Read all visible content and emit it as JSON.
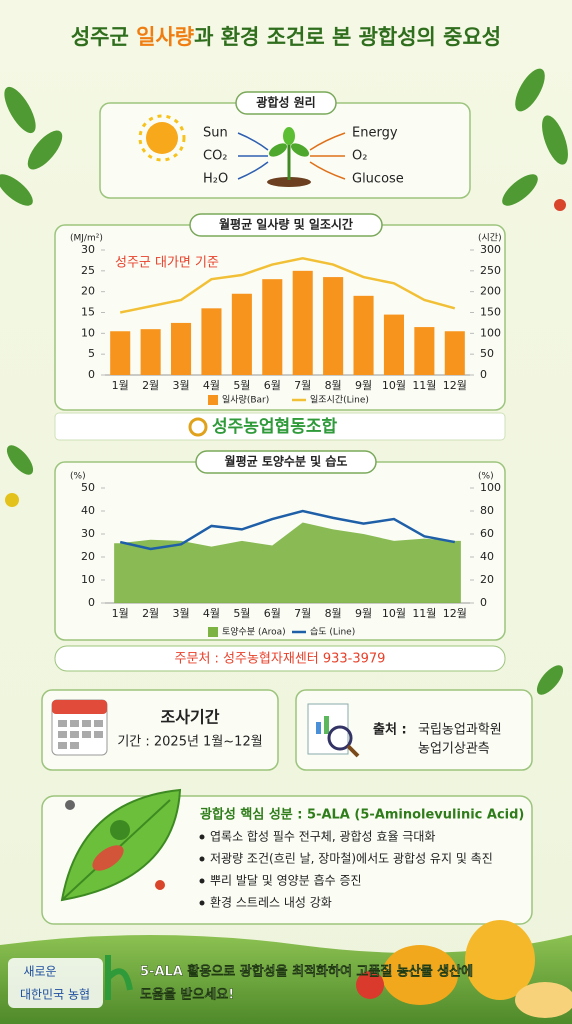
{
  "title": {
    "before": "성주군 ",
    "highlight": "일사량",
    "after": "과 환경 조건로 본 광합성의 중요성"
  },
  "principle": {
    "title": "광합성 원리",
    "inputs": [
      "Sun",
      "CO₂",
      "H₂O"
    ],
    "outputs": [
      "Energy",
      "O₂",
      "Glucose"
    ]
  },
  "chart_data": [
    {
      "type": "combo",
      "title": "월평균 일사량 및 일조시간",
      "annotation": "성주군 대가면 기준",
      "ylabel": "(MJ/m²)",
      "y2label": "(시간)",
      "categories": [
        "1월",
        "2월",
        "3월",
        "4월",
        "5월",
        "6월",
        "7월",
        "8월",
        "9월",
        "10월",
        "11월",
        "12월"
      ],
      "series": [
        {
          "name": "일사량(Bar)",
          "type": "bar",
          "color": "#f7941d",
          "values": [
            10.5,
            11,
            12.5,
            16,
            19.5,
            23,
            25,
            23.5,
            19,
            14.5,
            11.5,
            10.5
          ]
        },
        {
          "name": "일조시간(Line)",
          "type": "line",
          "axis": "y2",
          "color": "#f2c037",
          "values": [
            150,
            165,
            180,
            230,
            240,
            265,
            280,
            265,
            235,
            220,
            180,
            160
          ]
        }
      ],
      "ylim": [
        0,
        30
      ],
      "yticks": [
        0,
        5,
        10,
        15,
        20,
        25,
        30
      ],
      "y2lim": [
        0,
        300
      ],
      "y2ticks": [
        0,
        50,
        100,
        150,
        200,
        250,
        300
      ],
      "grid": false
    },
    {
      "type": "combo",
      "title": "월평균 토양수분 및 습도",
      "ylabel": "(%)",
      "y2label": "(%)",
      "categories": [
        "1월",
        "2월",
        "3월",
        "4월",
        "5월",
        "6월",
        "7월",
        "8월",
        "9월",
        "10월",
        "11월",
        "12월"
      ],
      "series": [
        {
          "name": "토양수분 (Aroa)",
          "type": "area",
          "color": "#7cb342",
          "values": [
            26,
            27.5,
            27,
            24.5,
            27,
            25,
            35,
            32,
            30,
            27,
            28,
            27
          ]
        },
        {
          "name": "습도 (Line)",
          "type": "line",
          "axis": "y2",
          "color": "#1f5fa8",
          "values": [
            53,
            47,
            51,
            67,
            64,
            73,
            80,
            74,
            69,
            73,
            58,
            53
          ]
        }
      ],
      "ylim": [
        0,
        50
      ],
      "yticks": [
        0,
        10,
        20,
        30,
        40,
        50
      ],
      "y2lim": [
        0,
        100
      ],
      "y2ticks": [
        0,
        20,
        40,
        60,
        80,
        100
      ],
      "grid": false
    }
  ],
  "logo": "성주농업협동조합",
  "contact": "주문처 : 성주농협자재센터 933-3979",
  "survey": {
    "title": "조사기간",
    "period": "기간 : 2025년 1월~12월"
  },
  "source": {
    "label": "출처 :",
    "lines": [
      "국립농업과학원",
      "농업기상관측"
    ]
  },
  "ingredient": {
    "title": "광합성 핵심 성분 : 5-ALA (5-Aminolevulinic Acid)",
    "bullets": [
      "엽록소 합성 필수 전구체, 광합성 효율 극대화",
      "저광량 조건(흐린 날, 장마철)에서도 광합성 유지 및 촉진",
      "뿌리 발달 및 영양분 흡수 증진",
      "환경 스트레스 내성 강화"
    ]
  },
  "footer": {
    "brand": [
      "새로운",
      "대한민국 농협"
    ],
    "message": [
      "5-ALA 활용으로 광합성을 최적화하여 고품질 농산물 생산에",
      "도움을 받으세요!"
    ]
  }
}
